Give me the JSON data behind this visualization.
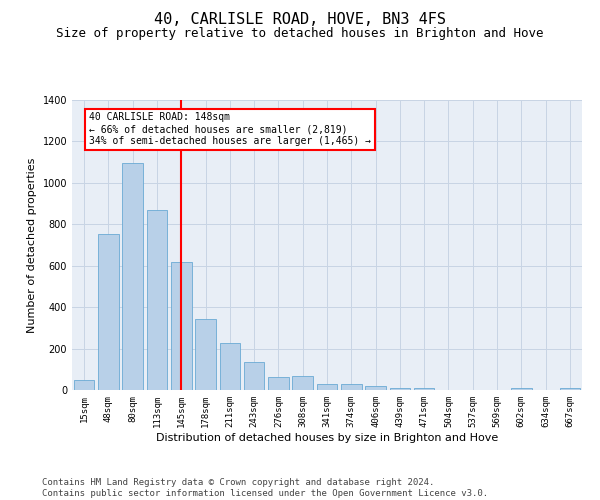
{
  "title": "40, CARLISLE ROAD, HOVE, BN3 4FS",
  "subtitle": "Size of property relative to detached houses in Brighton and Hove",
  "xlabel": "Distribution of detached houses by size in Brighton and Hove",
  "ylabel": "Number of detached properties",
  "categories": [
    "15sqm",
    "48sqm",
    "80sqm",
    "113sqm",
    "145sqm",
    "178sqm",
    "211sqm",
    "243sqm",
    "276sqm",
    "308sqm",
    "341sqm",
    "374sqm",
    "406sqm",
    "439sqm",
    "471sqm",
    "504sqm",
    "537sqm",
    "569sqm",
    "602sqm",
    "634sqm",
    "667sqm"
  ],
  "values": [
    50,
    755,
    1095,
    870,
    620,
    345,
    225,
    135,
    65,
    70,
    30,
    28,
    20,
    12,
    10,
    2,
    0,
    0,
    8,
    0,
    8
  ],
  "bar_color": "#b8d0e8",
  "bar_edge_color": "#6aaad4",
  "vline_x": 4,
  "vline_color": "red",
  "annotation_text": "40 CARLISLE ROAD: 148sqm\n← 66% of detached houses are smaller (2,819)\n34% of semi-detached houses are larger (1,465) →",
  "annotation_box_color": "white",
  "annotation_box_edge": "red",
  "ylim": [
    0,
    1400
  ],
  "yticks": [
    0,
    200,
    400,
    600,
    800,
    1000,
    1200,
    1400
  ],
  "grid_color": "#c8d4e4",
  "bg_color": "#e8eef6",
  "footer": "Contains HM Land Registry data © Crown copyright and database right 2024.\nContains public sector information licensed under the Open Government Licence v3.0.",
  "title_fontsize": 11,
  "subtitle_fontsize": 9,
  "label_fontsize": 8,
  "tick_fontsize": 6.5,
  "footer_fontsize": 6.5,
  "ann_fontsize": 7
}
